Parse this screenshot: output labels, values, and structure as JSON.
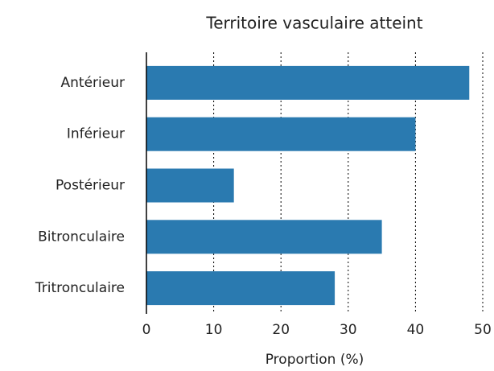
{
  "chart_data": {
    "type": "barh",
    "title": "Territoire vasculaire atteint",
    "xlabel": "Proportion (%)",
    "categories": [
      "Antérieur",
      "Inférieur",
      "Postérieur",
      "Bitronculaire",
      "Tritronculaire"
    ],
    "values": [
      48,
      40,
      13,
      35,
      28
    ],
    "color": "#2a7ab0",
    "xlim": [
      0,
      50
    ],
    "xticks": [
      0,
      10,
      20,
      30,
      40,
      50
    ],
    "grid": true
  }
}
